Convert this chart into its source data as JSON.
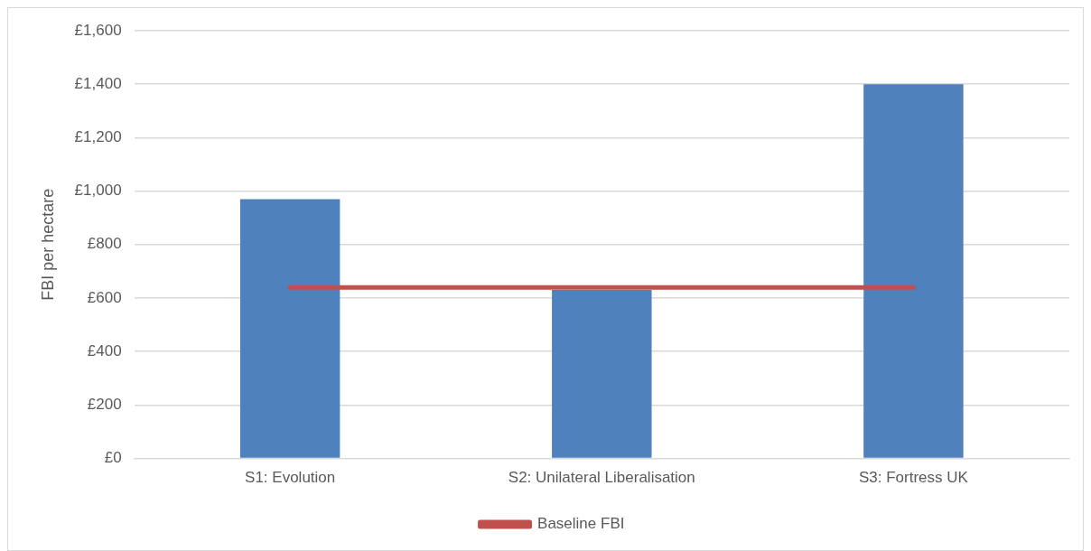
{
  "chart_data": {
    "type": "bar",
    "ylabel": "FBI per hectare",
    "categories": [
      "S1: Evolution",
      "S2: Unilateral Liberalisation",
      "S3: Fortress UK"
    ],
    "series": [
      {
        "color": "#4f81bd",
        "values": [
          970,
          630,
          1400
        ]
      },
      {
        "type": "line",
        "name": "Baseline FBI",
        "color": "#c0504d",
        "values": [
          640,
          640,
          640
        ],
        "marker": "none"
      }
    ],
    "ylim": [
      0,
      1600
    ],
    "yticks": [
      {
        "value": 0,
        "label": "£0"
      },
      {
        "value": 200,
        "label": "£200"
      },
      {
        "value": 400,
        "label": "£400"
      },
      {
        "value": 600,
        "label": "£600"
      },
      {
        "value": 800,
        "label": "£800"
      },
      {
        "value": 1000,
        "label": "£1,000"
      },
      {
        "value": 1200,
        "label": "£1,200"
      },
      {
        "value": 1400,
        "label": "£1,400"
      },
      {
        "value": 1600,
        "label": "£1,600"
      }
    ],
    "grid": "y",
    "legend": "bottom"
  }
}
